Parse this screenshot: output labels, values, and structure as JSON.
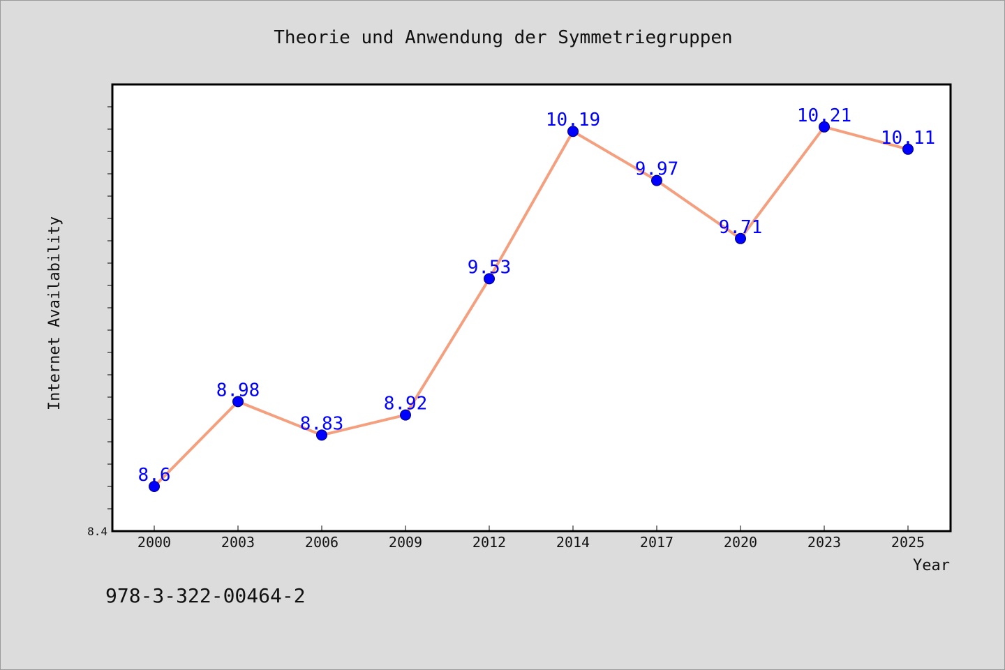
{
  "chart_data": {
    "type": "line",
    "title": "Theorie und Anwendung der Symmetriegruppen",
    "xlabel": "Year",
    "ylabel": "Internet Availability",
    "categories": [
      "2000",
      "2003",
      "2006",
      "2009",
      "2012",
      "2014",
      "2017",
      "2020",
      "2023",
      "2025"
    ],
    "series": [
      {
        "values": [
          8.6,
          8.98,
          8.83,
          8.92,
          9.53,
          10.19,
          9.97,
          9.71,
          10.21,
          10.11
        ],
        "data_labels": [
          "8.6",
          "8.98",
          "8.83",
          "8.92",
          "9.53",
          "10.19",
          "9.97",
          "9.71",
          "10.21",
          "10.11"
        ],
        "line_color": "#f4a07f",
        "marker_color": "#0000ff"
      }
    ],
    "ylim": [
      8.4,
      10.4
    ],
    "ytick_label": "8.4",
    "grid": false,
    "legend": "none"
  },
  "footer": {
    "identifier": "978-3-322-00464-2"
  },
  "colors": {
    "background": "#dcdcdc",
    "plot_background": "#ffffff",
    "data_label": "#0000ff"
  }
}
